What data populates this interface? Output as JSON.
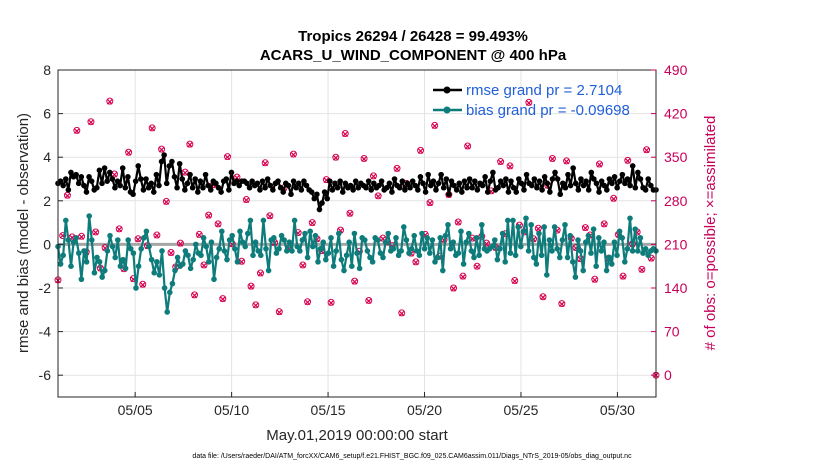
{
  "chart_data": {
    "type": "line",
    "title": "Tropics 26294 / 26428 = 99.493%",
    "subtitle": "ACARS_U_WIND_COMPONENT @ 400 hPa",
    "xlabel": "May.01,2019 00:00:00 start",
    "ylabel": "rmse and bias (model - observation)",
    "y2label": "# of obs: o=possible; ×=assimilated",
    "footer": "data file: /Users/raeder/DAI/ATM_forcXX/CAM6_setup/f.e21.FHIST_BGC.f09_025.CAM6assim.011/Diags_NTrS_2019-05/obs_diag_output.nc",
    "xlim": [
      1,
      32
    ],
    "ylim": [
      -7,
      8
    ],
    "y2lim": [
      -35,
      490
    ],
    "x_ticks": [
      5,
      10,
      15,
      20,
      25,
      30
    ],
    "x_tick_labels": [
      "05/05",
      "05/10",
      "05/15",
      "05/20",
      "05/25",
      "05/30"
    ],
    "y_ticks": [
      -6,
      -4,
      -2,
      0,
      2,
      4,
      6,
      8
    ],
    "y2_ticks": [
      0,
      70,
      140,
      210,
      280,
      350,
      420,
      490
    ],
    "grid": true,
    "legend_position": "top-right",
    "series": [
      {
        "name": "rmse grand pr = 2.7104",
        "color": "#000000",
        "marker": "star",
        "axis": "left",
        "values": [
          2.8,
          2.9,
          2.7,
          3.0,
          2.5,
          3.3,
          3.1,
          3.2,
          2.8,
          3.1,
          2.7,
          2.4,
          3.1,
          2.9,
          2.5,
          2.6,
          3.4,
          2.8,
          3.5,
          2.9,
          3.3,
          3.0,
          2.6,
          2.9,
          2.7,
          3.5,
          2.6,
          3.1,
          2.4,
          2.3,
          2.9,
          3.6,
          3.0,
          2.5,
          3.0,
          2.6,
          2.8,
          2.4,
          3.2,
          2.7,
          3.8,
          4.1,
          2.8,
          3.6,
          3.8,
          3.1,
          2.6,
          3.7,
          3.0,
          2.5,
          2.8,
          3.2,
          2.6,
          3.0,
          2.4,
          2.9,
          2.6,
          3.2,
          2.7,
          2.5,
          2.9,
          2.8,
          2.6,
          2.4,
          2.9,
          3.0,
          2.5,
          3.3,
          2.8,
          2.9,
          2.7,
          2.9,
          2.9,
          2.8,
          2.6,
          2.9,
          2.7,
          2.8,
          2.5,
          2.9,
          2.6,
          3.0,
          2.7,
          2.5,
          2.8,
          2.9,
          2.6,
          2.4,
          2.8,
          2.7,
          2.3,
          2.9,
          2.6,
          2.8,
          2.5,
          2.9,
          2.7,
          2.5,
          2.4,
          2.1,
          2.3,
          1.6,
          1.9,
          2.4,
          2.1,
          2.9,
          2.5,
          2.8,
          2.6,
          2.9,
          2.4,
          2.8,
          2.6,
          2.7,
          2.5,
          2.9,
          2.6,
          2.8,
          2.7,
          2.6,
          2.9,
          2.5,
          2.8,
          2.6,
          2.7,
          2.9,
          2.5,
          2.6,
          2.8,
          2.4,
          3.0,
          2.7,
          2.6,
          2.9,
          2.5,
          2.8,
          2.6,
          2.9,
          2.7,
          2.5,
          3.1,
          2.8,
          2.4,
          3.2,
          2.7,
          2.9,
          2.5,
          2.8,
          3.2,
          2.6,
          3.0,
          2.3,
          2.9,
          2.7,
          2.5,
          2.8,
          2.4,
          2.9,
          2.6,
          3.0,
          2.6,
          2.9,
          2.5,
          2.8,
          2.7,
          3.1,
          2.4,
          2.9,
          3.3,
          2.5,
          2.6,
          2.9,
          2.7,
          3.0,
          2.4,
          2.9,
          2.6,
          2.4,
          3.0,
          2.8,
          2.5,
          3.2,
          2.8,
          2.7,
          3.0,
          2.6,
          2.9,
          2.5,
          3.1,
          2.8,
          2.4,
          3.0,
          3.3,
          3.0,
          2.3,
          2.8,
          2.6,
          3.2,
          2.7,
          3.5,
          2.8,
          2.5,
          3.0,
          2.7,
          2.9,
          2.5,
          3.3,
          3.0,
          2.8,
          2.4,
          2.9,
          2.7,
          2.5,
          3.0,
          2.8,
          3.1,
          2.6,
          2.9,
          3.2,
          2.8,
          3.0,
          2.7,
          3.6,
          2.6,
          3.3,
          3.0,
          2.6,
          2.5,
          3.0,
          2.7,
          2.5,
          2.5
        ]
      },
      {
        "name": "bias grand pr = -0.09698",
        "color": "#0e7c7b",
        "marker": "circle",
        "axis": "left",
        "values": [
          -0.1,
          -0.9,
          -0.5,
          1.1,
          0.2,
          -1.0,
          0.1,
          0.3,
          -0.4,
          -1.6,
          -0.3,
          -0.8,
          1.3,
          0.2,
          -1.3,
          -0.6,
          -0.8,
          -1.5,
          -1.2,
          -0.3,
          0.4,
          -0.1,
          -0.6,
          0.2,
          -1.0,
          -0.7,
          -1.1,
          0.2,
          -0.2,
          -0.4,
          -2.0,
          -1.0,
          -0.2,
          0.3,
          0.6,
          -0.1,
          -0.7,
          -1.3,
          -0.8,
          -1.4,
          -0.3,
          -2.0,
          -3.1,
          -2.2,
          -1.8,
          -1.2,
          -0.6,
          -1.0,
          -0.9,
          -0.3,
          -0.5,
          -1.1,
          -0.7,
          0.0,
          -0.4,
          -0.5,
          0.3,
          -0.1,
          -0.8,
          0.1,
          -1.6,
          -0.6,
          -0.2,
          0.6,
          -0.3,
          -0.7,
          0.2,
          0.4,
          -0.2,
          -0.8,
          0.6,
          0.1,
          -0.1,
          0.5,
          1.1,
          -0.5,
          0.1,
          -0.3,
          -0.5,
          1.1,
          -0.2,
          -1.2,
          0.2,
          0.3,
          -0.4,
          -0.2,
          0.4,
          0.2,
          -0.3,
          0.1,
          -0.3,
          1.1,
          -0.1,
          -0.3,
          0.2,
          0.5,
          -0.6,
          0.6,
          -0.1,
          0.4,
          -0.8,
          -0.2,
          0.1,
          -0.7,
          -0.4,
          0.3,
          -1.0,
          -0.3,
          0.5,
          -0.7,
          -1.2,
          -0.5,
          0.1,
          -1.0,
          0.5,
          -0.4,
          -1.1,
          0.3,
          0.2,
          -0.3,
          -0.6,
          -0.8,
          0.3,
          0.2,
          -0.4,
          -0.6,
          0.1,
          0.5,
          -0.3,
          -0.2,
          0.3,
          -0.5,
          -0.3,
          0.8,
          0.2,
          -0.4,
          -0.2,
          0.4,
          -0.3,
          -0.5,
          0.5,
          -0.2,
          0.3,
          -0.4,
          0.2,
          -0.8,
          -0.6,
          0.3,
          -1.2,
          0.4,
          0.9,
          -0.2,
          0.1,
          -0.5,
          -0.4,
          0.6,
          -0.9,
          0.1,
          0.5,
          -0.3,
          -0.6,
          0.3,
          -0.5,
          0.9,
          -0.2,
          -0.3,
          -0.2,
          -0.1,
          0.2,
          -0.7,
          -0.2,
          0.5,
          -0.8,
          1.1,
          -0.4,
          1.1,
          -0.5,
          0.8,
          -0.1,
          0.6,
          1.2,
          -0.3,
          0.9,
          -0.6,
          -0.9,
          0.5,
          -0.5,
          0.8,
          -1.4,
          0.2,
          -0.3,
          0.8,
          -0.2,
          -0.6,
          0.2,
          0.9,
          -0.6,
          0.4,
          -0.8,
          -1.5,
          0.2,
          -0.3,
          -1.2,
          0.1,
          0.4,
          -0.4,
          0.7,
          -1.0,
          0.3,
          -0.3,
          0.1,
          -1.2,
          -0.6,
          -0.9,
          0.1,
          -0.5,
          0.6,
          0.3,
          -0.8,
          -0.2,
          1.2,
          -0.3,
          0.7,
          -0.3,
          0.3,
          -0.4,
          -0.2,
          -0.5,
          -0.3,
          -0.2,
          -0.3
        ]
      },
      {
        "name": "# of obs possible",
        "color": "#d6004f",
        "marker": "circle-open",
        "axis": "right",
        "values": [
          153,
          224,
          289,
          222,
          393,
          223,
          198,
          407,
          230,
          172,
          205,
          440,
          323,
          235,
          171,
          358,
          155,
          219,
          146,
          208,
          397,
          225,
          363,
          279,
          197,
          174,
          212,
          326,
          371,
          129,
          226,
          177,
          257,
          306,
          243,
          123,
          351,
          211,
          318,
          183,
          282,
          143,
          113,
          164,
          341,
          256,
          213,
          102,
          301,
          204,
          355,
          229,
          177,
          118,
          245,
          219,
          200,
          314,
          117,
          350,
          233,
          388,
          260,
          151,
          199,
          348,
          120,
          320,
          288,
          220,
          214,
          208,
          332,
          100,
          308,
          196,
          182,
          361,
          226,
          277,
          401,
          191,
          218,
          290,
          140,
          246,
          159,
          368,
          220,
          175,
          223,
          212,
          296,
          205,
          343,
          227,
          336,
          152,
          241,
          230,
          438,
          219,
          236,
          126,
          305,
          348,
          233,
          115,
          344,
          220,
          205,
          187,
          237,
          225,
          154,
          339,
          243,
          188,
          284,
          226,
          159,
          345,
          211,
          230,
          170,
          362,
          188,
          0
        ]
      },
      {
        "name": "# of obs assimilated",
        "color": "#d6004f",
        "marker": "x",
        "axis": "right",
        "values": [
          152,
          224,
          288,
          221,
          392,
          222,
          197,
          406,
          229,
          171,
          204,
          439,
          322,
          234,
          170,
          357,
          154,
          218,
          145,
          207,
          396,
          224,
          362,
          278,
          196,
          173,
          211,
          325,
          370,
          128,
          225,
          176,
          256,
          305,
          242,
          122,
          350,
          210,
          317,
          182,
          281,
          142,
          112,
          163,
          340,
          255,
          212,
          101,
          300,
          203,
          354,
          228,
          176,
          117,
          244,
          218,
          199,
          313,
          116,
          349,
          232,
          387,
          259,
          150,
          198,
          347,
          119,
          319,
          287,
          219,
          213,
          207,
          331,
          99,
          307,
          195,
          181,
          360,
          225,
          276,
          400,
          190,
          217,
          289,
          139,
          245,
          158,
          367,
          219,
          174,
          222,
          211,
          295,
          204,
          342,
          226,
          335,
          151,
          240,
          229,
          437,
          218,
          235,
          125,
          304,
          347,
          232,
          114,
          343,
          219,
          204,
          186,
          236,
          224,
          153,
          338,
          242,
          187,
          283,
          225,
          158,
          344,
          210,
          229,
          169,
          361,
          187,
          0
        ]
      }
    ]
  }
}
